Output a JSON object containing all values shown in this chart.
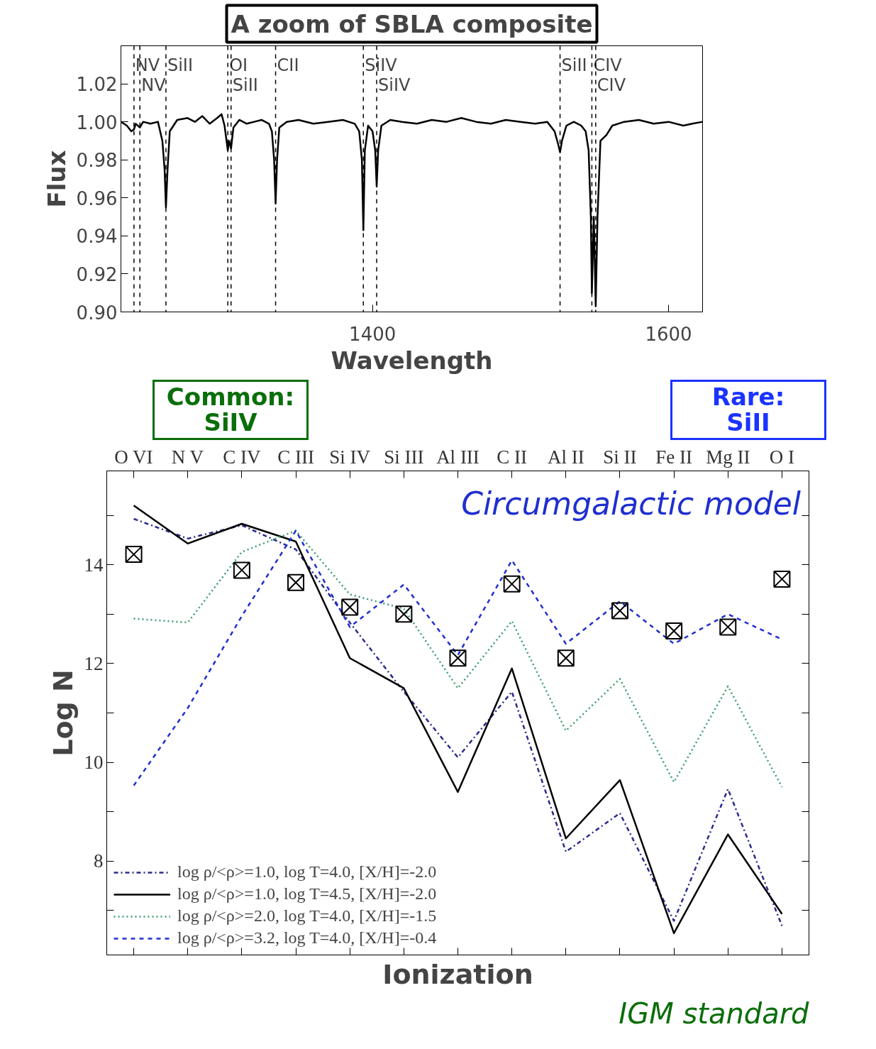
{
  "chart_data": [
    {
      "type": "line",
      "title": "A zoom of SBLA composite",
      "xlabel": "Wavelength",
      "ylabel": "Flux",
      "xlim": [
        1230,
        1623
      ],
      "ylim": [
        0.9,
        1.04
      ],
      "xticks": [
        1400,
        1600
      ],
      "yticks": [
        {
          "value": 0.9,
          "label": "0.90"
        },
        0.92,
        0.94,
        0.96,
        0.98,
        {
          "value": 1.0,
          "label": "1.00"
        },
        1.02
      ],
      "series": [
        {
          "color": "#000000",
          "x": [
            1230,
            1234,
            1237,
            1238.8,
            1240,
            1242.8,
            1245,
            1250,
            1255,
            1258,
            1259.5,
            1260.4,
            1261.5,
            1263,
            1268,
            1275,
            1280,
            1285,
            1290,
            1295,
            1298,
            1300,
            1302.2,
            1303,
            1304.4,
            1306,
            1310,
            1315,
            1320,
            1325,
            1330,
            1332,
            1333.5,
            1334.5,
            1335.5,
            1337,
            1342,
            1350,
            1360,
            1370,
            1380,
            1388,
            1391,
            1392.8,
            1393.8,
            1394.8,
            1397,
            1400,
            1401.8,
            1402.8,
            1403.8,
            1406,
            1412,
            1420,
            1430,
            1440,
            1450,
            1460,
            1470,
            1480,
            1490,
            1500,
            1510,
            1518,
            1523,
            1525.5,
            1526.7,
            1528,
            1531,
            1536,
            1541,
            1544,
            1546,
            1547.5,
            1548.2,
            1549.5,
            1550.8,
            1552,
            1554,
            1558,
            1562,
            1570,
            1580,
            1590,
            1600,
            1610,
            1616,
            1623
          ],
          "values": [
            1.0,
            0.998,
            0.995,
            0.996,
            0.999,
            0.997,
            1.0,
            0.999,
            1.0,
            0.99,
            0.975,
            0.955,
            0.975,
            0.995,
            1.001,
            1.002,
            1.0,
            1.003,
            0.999,
            1.002,
            1.004,
            0.998,
            0.985,
            0.99,
            0.986,
            0.997,
            1.001,
            0.999,
            1.0,
            1.001,
            0.999,
            0.995,
            0.98,
            0.957,
            0.98,
            0.997,
            1.0,
            1.001,
            0.999,
            1.0,
            1.001,
            0.999,
            0.995,
            0.98,
            0.943,
            0.985,
            0.998,
            0.995,
            0.985,
            0.966,
            0.985,
            0.998,
            1.001,
            1.0,
            0.999,
            1.001,
            1.0,
            1.002,
            1.0,
            0.999,
            1.001,
            1.0,
            0.999,
            1.0,
            0.995,
            0.988,
            0.984,
            0.99,
            0.998,
            1.0,
            0.998,
            0.995,
            0.985,
            0.95,
            0.91,
            0.95,
            0.903,
            0.95,
            0.99,
            0.993,
            0.998,
            1.0,
            1.001,
            0.999,
            1.0,
            0.998,
            0.999,
            1.0
          ]
        }
      ],
      "ref_lines": [
        {
          "axis": "x",
          "value": 1238.8,
          "label": "NV",
          "color": "#000000",
          "line_style": "dashed"
        },
        {
          "axis": "x",
          "value": 1242.8,
          "label": "NV",
          "color": "#000000",
          "line_style": "dashed"
        },
        {
          "axis": "x",
          "value": 1260.4,
          "label": "SiII",
          "color": "#000000",
          "line_style": "dashed"
        },
        {
          "axis": "x",
          "value": 1302.2,
          "label": "OI",
          "color": "#000000",
          "line_style": "dashed"
        },
        {
          "axis": "x",
          "value": 1304.4,
          "label": "SiII",
          "color": "#000000",
          "line_style": "dashed"
        },
        {
          "axis": "x",
          "value": 1334.5,
          "label": "CII",
          "color": "#000000",
          "line_style": "dashed"
        },
        {
          "axis": "x",
          "value": 1393.8,
          "label": "SiIV",
          "color": "#000000",
          "line_style": "dashed"
        },
        {
          "axis": "x",
          "value": 1402.8,
          "label": "SiIV",
          "color": "#000000",
          "line_style": "dashed"
        },
        {
          "axis": "x",
          "value": 1526.7,
          "label": "SiII",
          "color": "#000000",
          "line_style": "dashed"
        },
        {
          "axis": "x",
          "value": 1548.2,
          "label": "CIV",
          "color": "#000000",
          "line_style": "dashed"
        },
        {
          "axis": "x",
          "value": 1550.8,
          "label": "CIV",
          "color": "#000000",
          "line_style": "dashed"
        }
      ],
      "annotations": [
        "Common:\nSiIV",
        "Rare:\nSiII"
      ]
    },
    {
      "type": "line",
      "ylabel": "Log N",
      "xlabel": "Ionization",
      "categories": [
        "O VI",
        "N V",
        "C IV",
        "C III",
        "Si IV",
        "Si III",
        "Al III",
        "C II",
        "Al II",
        "Si II",
        "Fe II",
        "Mg II",
        "O I"
      ],
      "ylim": [
        6.1,
        15.9
      ],
      "yticks": [
        {
          "value": 7,
          "label": null
        },
        8,
        {
          "value": 9,
          "label": null
        },
        10,
        {
          "value": 11,
          "label": null
        },
        12,
        {
          "value": 13,
          "label": null
        },
        14,
        {
          "value": 15,
          "label": null
        }
      ],
      "legend": "bottom left",
      "series": [
        {
          "name": "log ρ/<ρ>=1.0, log T=4.0, [X/H]=-2.0",
          "color": "#2b2b8c",
          "line_style": "dashdot",
          "values": [
            14.93,
            14.53,
            14.8,
            14.31,
            12.83,
            11.43,
            10.1,
            11.43,
            8.19,
            8.97,
            6.79,
            9.46,
            6.69
          ]
        },
        {
          "name": "log ρ/<ρ>=1.0, log T=4.5, [X/H]=-2.0",
          "color": "#000000",
          "line_style": "solid",
          "values": [
            15.2,
            14.43,
            14.83,
            14.47,
            12.11,
            11.5,
            9.4,
            11.9,
            8.46,
            9.64,
            6.54,
            8.54,
            6.93
          ]
        },
        {
          "name": "log ρ/<ρ>=2.0, log T=4.0, [X/H]=-1.5",
          "color": "#3a9d6e",
          "line_style": "dotted",
          "values": [
            12.91,
            12.83,
            14.26,
            14.69,
            13.4,
            13.11,
            11.5,
            12.86,
            10.64,
            11.69,
            9.6,
            11.54,
            9.5
          ]
        },
        {
          "name": "log ρ/<ρ>=3.2, log T=4.0, [X/H]=-0.4",
          "color": "#1f2fd0",
          "line_style": "dashed",
          "values": [
            9.53,
            11.1,
            12.96,
            14.69,
            12.74,
            13.6,
            12.17,
            14.09,
            12.4,
            13.26,
            12.4,
            13.0,
            12.49
          ]
        },
        {
          "type": "scatter",
          "marker": "square",
          "color": "#000000",
          "values": [
            14.21,
            null,
            13.89,
            13.64,
            13.14,
            13.0,
            12.11,
            13.61,
            12.11,
            13.07,
            12.66,
            12.74,
            13.71
          ]
        }
      ],
      "annotations": [
        "Circumgalactic model",
        "IGM standard"
      ]
    }
  ]
}
